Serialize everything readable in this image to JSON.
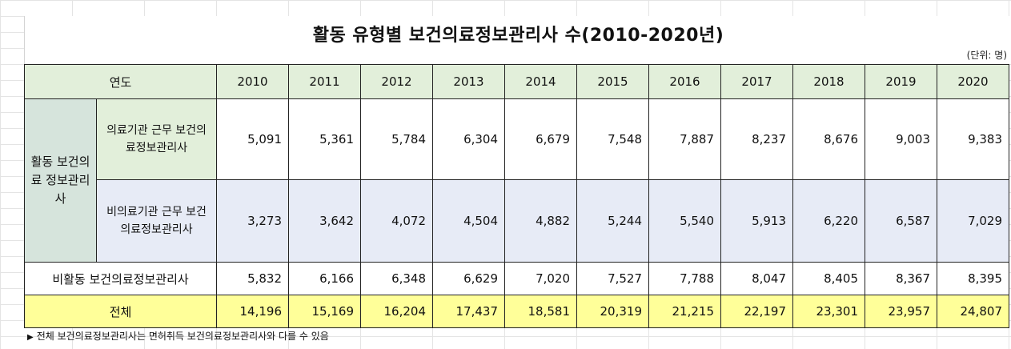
{
  "title": "활동 유형별 보건의료정보관리사 수(2010-2020년)",
  "unit": "(단위: 명)",
  "header": {
    "year_label": "연도",
    "years": [
      "2010",
      "2011",
      "2012",
      "2013",
      "2014",
      "2015",
      "2016",
      "2017",
      "2018",
      "2019",
      "2020"
    ]
  },
  "active_group_label": "활동 보건의료 정보관리 사",
  "rows": {
    "medical": {
      "label": "의료기관 근무 보건의료정보관리사",
      "values": [
        "5,091",
        "5,361",
        "5,784",
        "6,304",
        "6,679",
        "7,548",
        "7,887",
        "8,237",
        "8,676",
        "9,003",
        "9,383"
      ]
    },
    "non_medical": {
      "label": "비의료기관 근무 보건의료정보관리사",
      "values": [
        "3,273",
        "3,642",
        "4,072",
        "4,504",
        "4,882",
        "5,244",
        "5,540",
        "5,913",
        "6,220",
        "6,587",
        "7,029"
      ]
    },
    "inactive": {
      "label": "비활동 보건의료정보관리사",
      "values": [
        "5,832",
        "6,166",
        "6,348",
        "6,629",
        "7,020",
        "7,527",
        "7,788",
        "8,047",
        "8,405",
        "8,367",
        "8,395"
      ]
    },
    "total": {
      "label": "전체",
      "values": [
        "14,196",
        "15,169",
        "16,204",
        "17,437",
        "18,581",
        "20,319",
        "21,215",
        "22,197",
        "23,301",
        "23,957",
        "24,807"
      ]
    }
  },
  "note": "전체 보건의료정보관리사는 면허취득 보건의료정보관리사와 다를 수 있음",
  "colors": {
    "header_green": "#e2efda",
    "group_green": "#d6e4dc",
    "row_blue": "#e7ebf6",
    "total_yellow": "#ffff99"
  }
}
